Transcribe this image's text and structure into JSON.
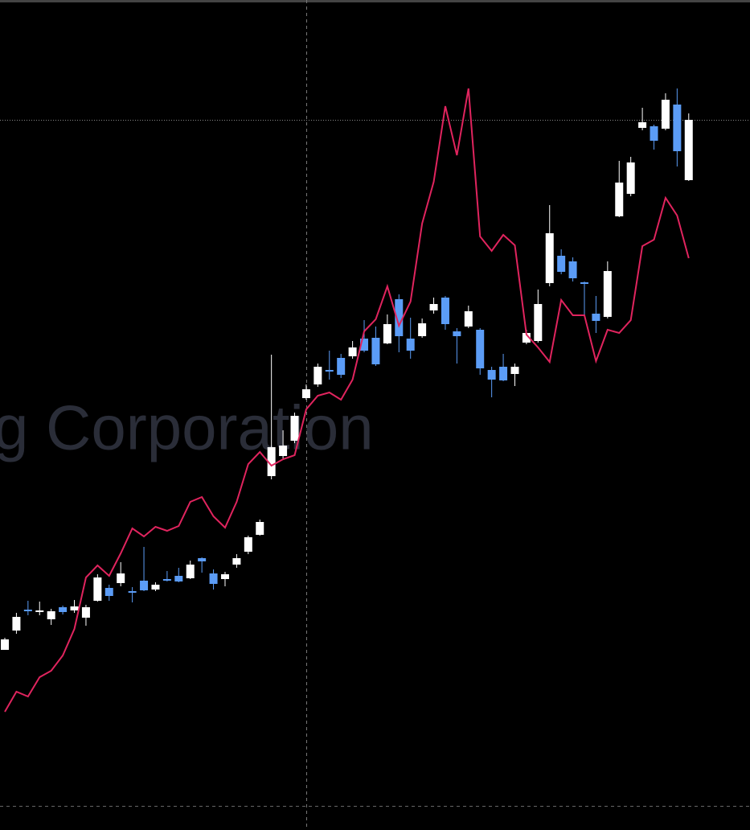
{
  "chart_data": {
    "type": "candlestick",
    "watermark": "g Corporation",
    "ylim": [
      0,
      1032
    ],
    "up_color": "#ffffff",
    "down_color": "#5b9cf6",
    "line_color": "#e0245e",
    "open": [
      224,
      248,
      274,
      271,
      262,
      277,
      273,
      264,
      285,
      301,
      307,
      297,
      310,
      299,
      312,
      316,
      313,
      338,
      319,
      312,
      330,
      346,
      367,
      440,
      465,
      484,
      537,
      554,
      572,
      587,
      589,
      611,
      612,
      605,
      660,
      611,
      614,
      646,
      662,
      620,
      626,
      622,
      572,
      576,
      567,
      606,
      608,
      680,
      714,
      707,
      681,
      642,
      638,
      763,
      791,
      873,
      875,
      872,
      902,
      808
    ],
    "high": [
      239,
      270,
      285,
      284,
      275,
      279,
      286,
      280,
      318,
      305,
      333,
      302,
      352,
      308,
      322,
      326,
      335,
      339,
      324,
      321,
      343,
      366,
      386,
      591,
      497,
      519,
      554,
      580,
      596,
      592,
      608,
      634,
      626,
      641,
      666,
      637,
      636,
      662,
      664,
      624,
      652,
      624,
      576,
      592,
      580,
      622,
      672,
      777,
      722,
      712,
      682,
      664,
      707,
      832,
      837,
      898,
      877,
      916,
      922,
      891
    ],
    "low": [
      224,
      244,
      267,
      267,
      255,
      268,
      270,
      254,
      284,
      285,
      303,
      283,
      297,
      297,
      309,
      308,
      312,
      320,
      299,
      303,
      326,
      343,
      366,
      436,
      462,
      481,
      535,
      551,
      560,
      562,
      586,
      594,
      577,
      604,
      594,
      586,
      612,
      642,
      622,
      580,
      624,
      566,
      538,
      558,
      552,
      604,
      606,
      676,
      691,
      682,
      640,
      618,
      636,
      762,
      788,
      870,
      846,
      870,
      825,
      807
    ],
    "close": [
      237,
      265,
      272,
      273,
      272,
      271,
      278,
      277,
      314,
      291,
      319,
      295,
      298,
      305,
      310,
      309,
      330,
      334,
      306,
      318,
      338,
      364,
      383,
      476,
      478,
      515,
      548,
      576,
      570,
      566,
      600,
      596,
      579,
      629,
      614,
      596,
      630,
      654,
      629,
      614,
      645,
      574,
      560,
      559,
      576,
      618,
      654,
      742,
      694,
      686,
      679,
      633,
      695,
      805,
      830,
      880,
      857,
      908,
      844,
      883
    ],
    "line": [
      147,
      172,
      166,
      190,
      198,
      217,
      250,
      314,
      329,
      316,
      344,
      375,
      365,
      377,
      372,
      378,
      408,
      414,
      390,
      376,
      408,
      455,
      470,
      453,
      461,
      466,
      523,
      540,
      544,
      535,
      560,
      620,
      635,
      676,
      627,
      657,
      754,
      806,
      900,
      839,
      922,
      738,
      720,
      740,
      727,
      616,
      600,
      582,
      659,
      640,
      640,
      583,
      622,
      618,
      634,
      726,
      734,
      786,
      764,
      711
    ]
  }
}
